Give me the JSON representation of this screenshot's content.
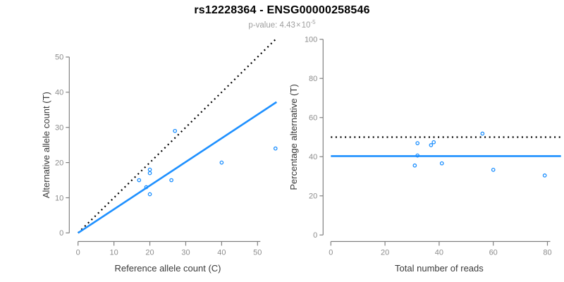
{
  "colors": {
    "accent": "#1E90FF",
    "reference": "#000000",
    "axis": "#808080",
    "tick_label": "#8C8C8C",
    "axis_title": "#3A3A3A",
    "title": "#000000",
    "subtitle": "#9E9E9E",
    "background": "#FFFFFF"
  },
  "header": {
    "title": "rs12228364 - ENSG00000258546",
    "subtitle": {
      "prefix": "p-value: 4.43",
      "times": "×",
      "base": "10",
      "exponent": "-5"
    }
  },
  "chart_data": [
    {
      "type": "scatter",
      "panel": "allele-counts",
      "xlabel": "Reference allele count (C)",
      "ylabel": "Alternative allele count (T)",
      "xticks": [
        0,
        10,
        20,
        30,
        40,
        50
      ],
      "yticks": [
        0,
        10,
        20,
        30,
        40,
        50
      ],
      "xlim": [
        0,
        56
      ],
      "ylim": [
        0,
        56
      ],
      "grid": false,
      "points": [
        [
          17,
          15
        ],
        [
          19,
          13
        ],
        [
          20,
          11
        ],
        [
          20,
          17
        ],
        [
          20,
          18
        ],
        [
          26,
          15
        ],
        [
          27,
          29
        ],
        [
          40,
          20
        ],
        [
          55,
          24
        ]
      ],
      "lines": [
        {
          "name": "identity-line",
          "style": "dotted",
          "color": "reference",
          "x1": 0,
          "y1": 0,
          "x2": 55,
          "y2": 55,
          "width": 2.2
        },
        {
          "name": "fit-line",
          "style": "solid",
          "color": "accent",
          "x1": 0,
          "y1": 0,
          "x2": 55.3,
          "y2": 37.2,
          "width": 2.6
        }
      ]
    },
    {
      "type": "scatter",
      "panel": "percentage-alternative",
      "xlabel": "Total number of reads",
      "ylabel": "Percentage alternative (T)",
      "xticks": [
        0,
        20,
        40,
        60,
        80
      ],
      "yticks": [
        0,
        20,
        40,
        60,
        80,
        100
      ],
      "xlim": [
        0,
        85
      ],
      "ylim": [
        0,
        100
      ],
      "grid": false,
      "points": [
        [
          31,
          35.5
        ],
        [
          32,
          40.6
        ],
        [
          32,
          46.9
        ],
        [
          37,
          45.9
        ],
        [
          38,
          47.4
        ],
        [
          41,
          36.6
        ],
        [
          56,
          51.8
        ],
        [
          60,
          33.3
        ],
        [
          79,
          30.4
        ]
      ],
      "lines": [
        {
          "name": "fifty-percent-line",
          "style": "dotted",
          "color": "reference",
          "x1": 0,
          "y1": 50,
          "x2": 85,
          "y2": 50,
          "width": 2.2
        },
        {
          "name": "fit-line",
          "style": "solid",
          "color": "accent",
          "x1": 0,
          "y1": 40.3,
          "x2": 85,
          "y2": 40.3,
          "width": 2.6
        }
      ]
    }
  ]
}
